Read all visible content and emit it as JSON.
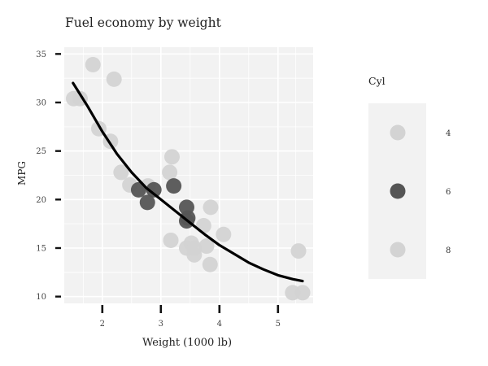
{
  "chart_data": {
    "type": "scatter",
    "title": "Fuel economy by weight",
    "xlabel": "Weight (1000 lb)",
    "ylabel": "MPG",
    "xlim": [
      1.35,
      5.6
    ],
    "ylim": [
      9.3,
      35.7
    ],
    "xticks": [
      2,
      3,
      4,
      5
    ],
    "yticks": [
      10,
      15,
      20,
      25,
      30,
      35
    ],
    "grid": true,
    "legend": {
      "title": "Cyl",
      "placement": "right",
      "entries": [
        {
          "label": "4",
          "color": "#d3d3d3"
        },
        {
          "label": "6",
          "color": "#555555"
        },
        {
          "label": "8",
          "color": "#d3d3d3"
        }
      ]
    },
    "series": [
      {
        "name": "4",
        "color": "#d3d3d3",
        "points": [
          {
            "x": 1.51,
            "y": 30.4
          },
          {
            "x": 1.62,
            "y": 30.4
          },
          {
            "x": 1.84,
            "y": 33.9
          },
          {
            "x": 1.94,
            "y": 27.3
          },
          {
            "x": 2.14,
            "y": 26.0
          },
          {
            "x": 2.2,
            "y": 32.4
          },
          {
            "x": 2.32,
            "y": 22.8
          },
          {
            "x": 2.47,
            "y": 21.5
          },
          {
            "x": 2.78,
            "y": 21.4
          },
          {
            "x": 3.15,
            "y": 22.8
          },
          {
            "x": 3.19,
            "y": 24.4
          }
        ]
      },
      {
        "name": "6",
        "color": "#555555",
        "points": [
          {
            "x": 2.62,
            "y": 21.0
          },
          {
            "x": 2.77,
            "y": 19.7
          },
          {
            "x": 2.88,
            "y": 21.0
          },
          {
            "x": 3.22,
            "y": 21.4
          },
          {
            "x": 3.44,
            "y": 19.2
          },
          {
            "x": 3.44,
            "y": 17.8
          },
          {
            "x": 3.46,
            "y": 18.1
          }
        ]
      },
      {
        "name": "8",
        "color": "#d3d3d3",
        "points": [
          {
            "x": 3.17,
            "y": 15.8
          },
          {
            "x": 3.44,
            "y": 15.0
          },
          {
            "x": 3.52,
            "y": 15.5
          },
          {
            "x": 3.57,
            "y": 14.3
          },
          {
            "x": 3.57,
            "y": 15.0
          },
          {
            "x": 3.73,
            "y": 17.3
          },
          {
            "x": 3.78,
            "y": 15.2
          },
          {
            "x": 3.84,
            "y": 13.3
          },
          {
            "x": 3.85,
            "y": 19.2
          },
          {
            "x": 4.07,
            "y": 16.4
          },
          {
            "x": 5.25,
            "y": 10.4
          },
          {
            "x": 5.35,
            "y": 14.7
          },
          {
            "x": 5.42,
            "y": 10.4
          }
        ]
      }
    ],
    "trend": {
      "color": "#000000",
      "points": [
        {
          "x": 1.5,
          "y": 32.0
        },
        {
          "x": 1.75,
          "y": 29.6
        },
        {
          "x": 2.0,
          "y": 27.0
        },
        {
          "x": 2.25,
          "y": 24.7
        },
        {
          "x": 2.5,
          "y": 22.8
        },
        {
          "x": 2.75,
          "y": 21.2
        },
        {
          "x": 3.0,
          "y": 20.0
        },
        {
          "x": 3.25,
          "y": 18.8
        },
        {
          "x": 3.5,
          "y": 17.6
        },
        {
          "x": 3.75,
          "y": 16.4
        },
        {
          "x": 4.0,
          "y": 15.3
        },
        {
          "x": 4.25,
          "y": 14.4
        },
        {
          "x": 4.5,
          "y": 13.5
        },
        {
          "x": 4.75,
          "y": 12.8
        },
        {
          "x": 5.0,
          "y": 12.2
        },
        {
          "x": 5.25,
          "y": 11.8
        },
        {
          "x": 5.42,
          "y": 11.6
        }
      ]
    }
  }
}
